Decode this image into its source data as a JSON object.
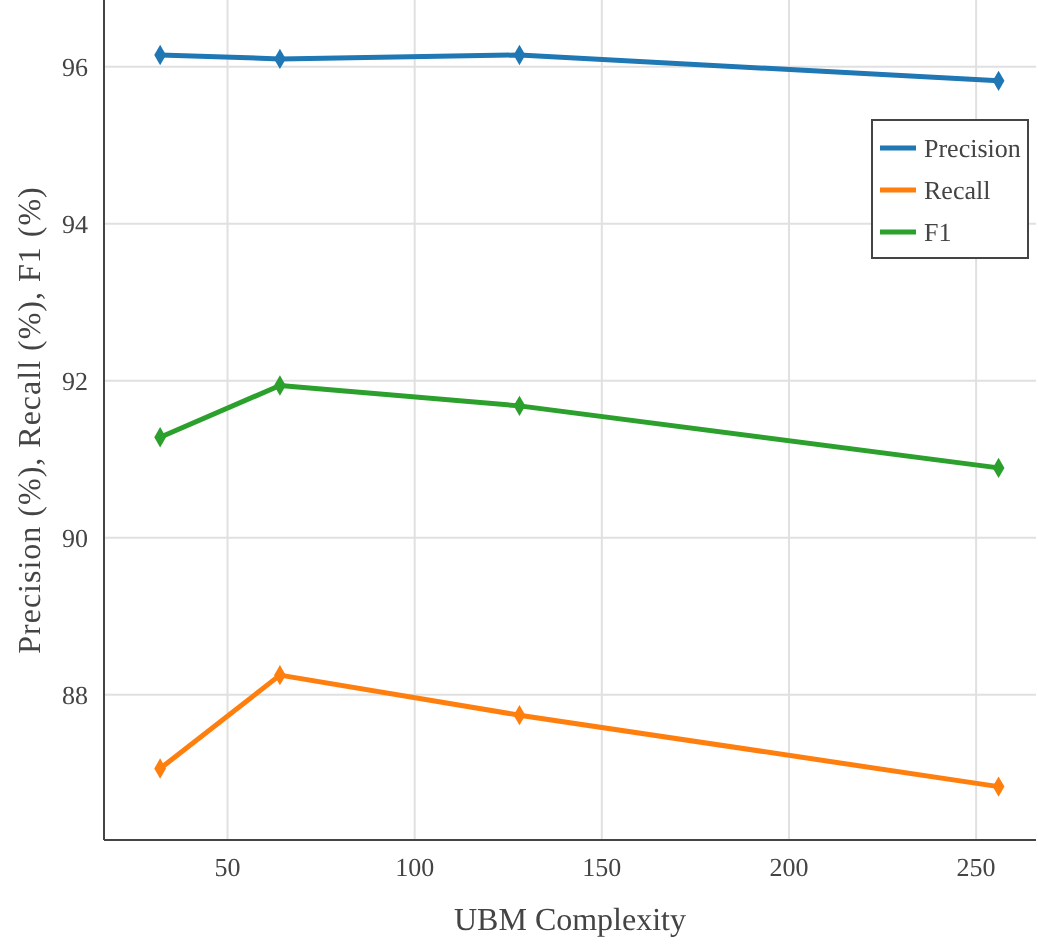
{
  "chart_data": {
    "type": "line",
    "xlabel": "UBM Complexity",
    "ylabel": "Precision (%), Recall (%), F1 (%)",
    "x": [
      32,
      64,
      128,
      256
    ],
    "series": [
      {
        "name": "Precision",
        "color": "#1f77b4",
        "values": [
          96.15,
          96.1,
          96.15,
          95.82
        ]
      },
      {
        "name": "Recall",
        "color": "#ff7f0e",
        "values": [
          87.06,
          88.25,
          87.74,
          86.83
        ]
      },
      {
        "name": "F1",
        "color": "#2ca02c",
        "values": [
          91.28,
          91.94,
          91.68,
          90.89
        ]
      }
    ],
    "xlim": [
      17,
      266
    ],
    "xticks": [
      50,
      100,
      150,
      200,
      250
    ],
    "ylim": [
      86.15,
      96.85
    ],
    "yticks": [
      88,
      90,
      92,
      94,
      96
    ],
    "grid": true,
    "legend": "top right",
    "marker": "diamond",
    "line_style": "solid"
  }
}
